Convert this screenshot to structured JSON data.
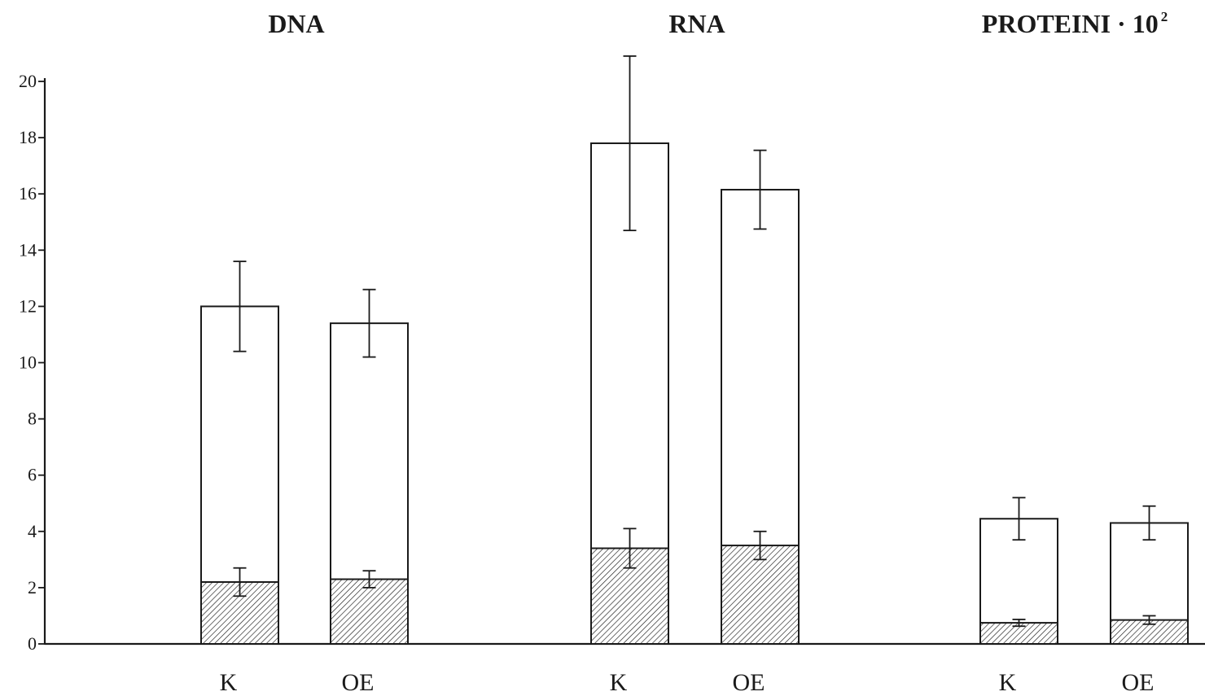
{
  "chart_data": {
    "type": "bar",
    "stacked": false,
    "overlay": true,
    "ylim": [
      0,
      20
    ],
    "yticks": [
      "0",
      "2",
      "4",
      "6",
      "8",
      "10",
      "12",
      "14",
      "16",
      "18",
      "20"
    ],
    "grid": false,
    "groups": [
      {
        "title": "DNA",
        "bars": [
          {
            "category": "K",
            "total": 12.0,
            "total_err": 1.6,
            "hatched": 2.2,
            "hatched_err": 0.5
          },
          {
            "category": "OE",
            "total": 11.4,
            "total_err": 1.2,
            "hatched": 2.3,
            "hatched_err": 0.3
          }
        ]
      },
      {
        "title": "RNA",
        "bars": [
          {
            "category": "K",
            "total": 17.8,
            "total_err": 3.1,
            "hatched": 3.4,
            "hatched_err": 0.7
          },
          {
            "category": "OE",
            "total": 16.15,
            "total_err": 1.4,
            "hatched": 3.5,
            "hatched_err": 0.5
          }
        ]
      },
      {
        "title": "PROTEINI · 10",
        "title_sup": "2",
        "bars": [
          {
            "category": "K",
            "total": 4.45,
            "total_err": 0.75,
            "hatched": 0.75,
            "hatched_err": 0.12
          },
          {
            "category": "OE",
            "total": 4.3,
            "total_err": 0.6,
            "hatched": 0.85,
            "hatched_err": 0.15
          }
        ]
      }
    ],
    "colors": {
      "bar_fill": "#ffffff",
      "outline": "#1a1a1a",
      "hatch": "#1a1a1a"
    }
  }
}
